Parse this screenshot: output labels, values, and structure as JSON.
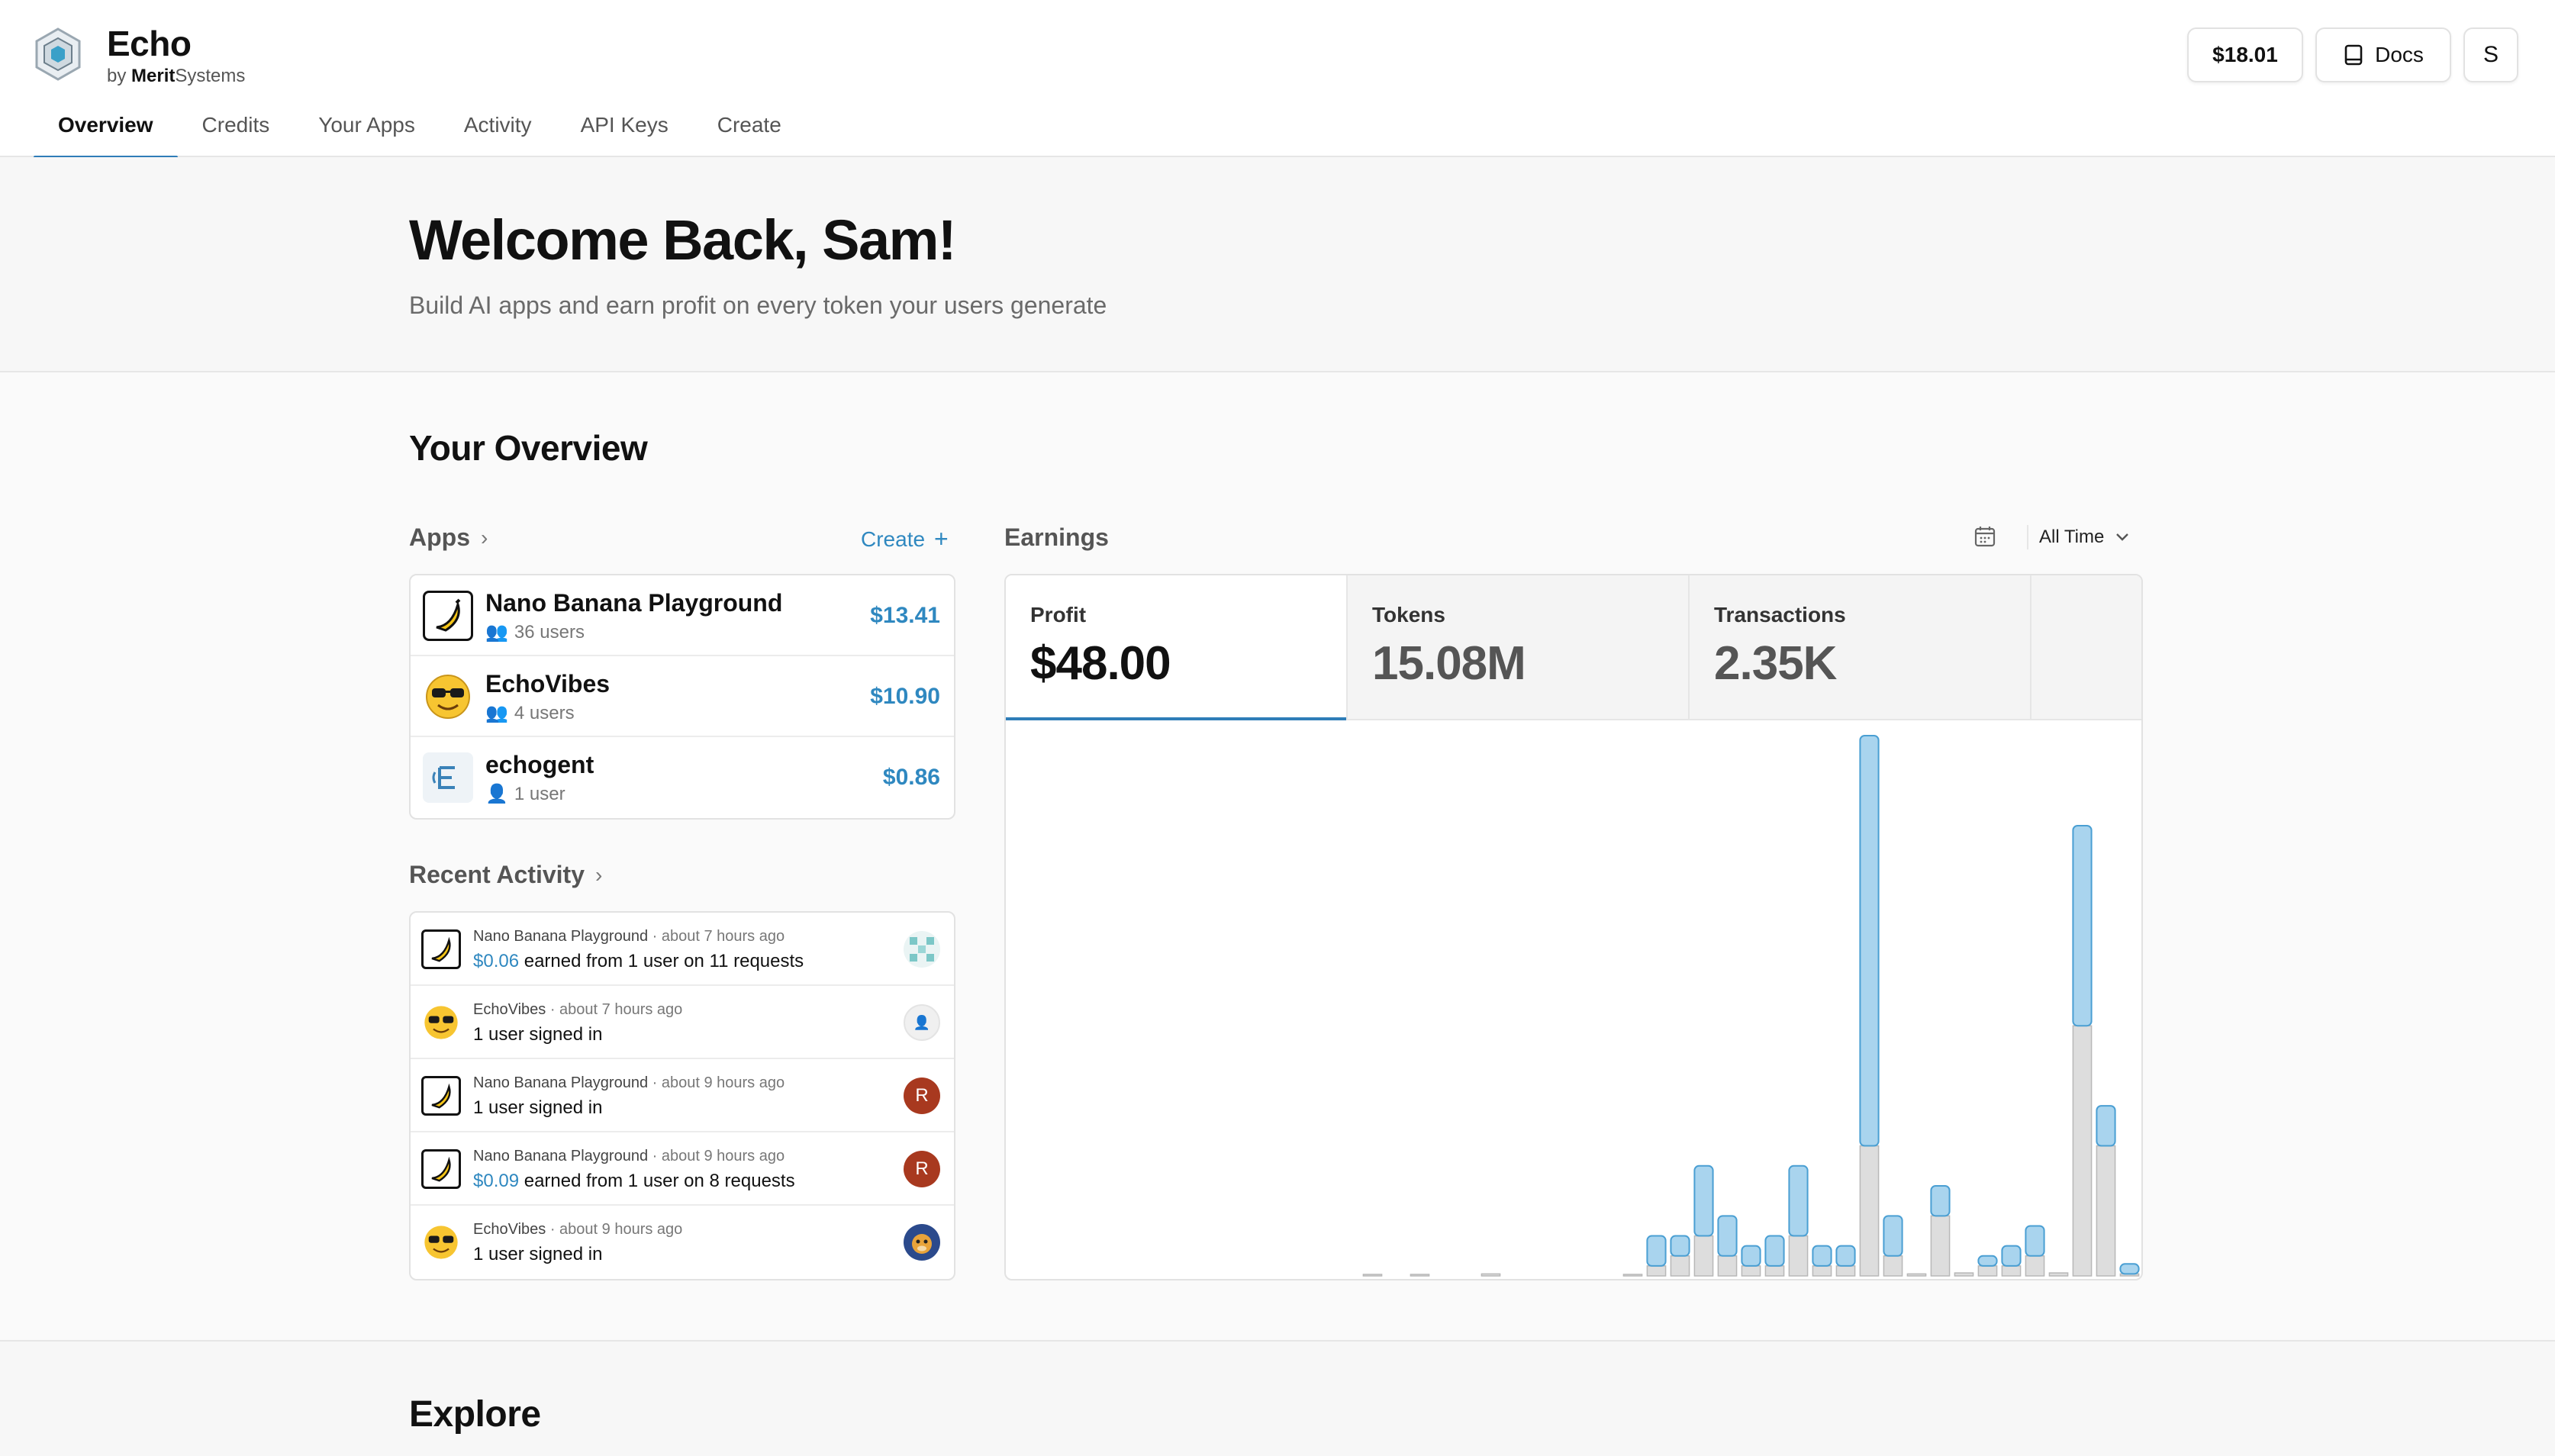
{
  "header": {
    "brand": "Echo",
    "by_prefix": "by",
    "by_company_bold": "Merit",
    "by_company_rest": "Systems",
    "balance": "$18.01",
    "docs_label": "Docs",
    "user_initial": "S",
    "tabs": [
      "Overview",
      "Credits",
      "Your Apps",
      "Activity",
      "API Keys",
      "Create"
    ],
    "active_tab": "Overview"
  },
  "welcome": {
    "title": "Welcome Back, Sam!",
    "subtitle": "Build AI apps and earn profit on every token your users generate"
  },
  "overview": {
    "title": "Your Overview",
    "apps_label": "Apps",
    "create_label": "Create",
    "apps": [
      {
        "name": "Nano Banana Playground",
        "users": "36 users",
        "amount": "$13.41",
        "icon": "banana-icon"
      },
      {
        "name": "EchoVibes",
        "users": "4 users",
        "amount": "$10.90",
        "icon": "sunglasses-smiley-icon"
      },
      {
        "name": "echogent",
        "users": "1 user",
        "amount": "$0.86",
        "icon": "echogent-icon"
      }
    ],
    "recent_activity_label": "Recent Activity",
    "activity": [
      {
        "app": "Nano Banana Playground",
        "time": "about 7 hours ago",
        "amount": "$0.06",
        "text": " earned from 1 user on 11 requests",
        "icon": "banana-icon",
        "avatar": "pattern-avatar"
      },
      {
        "app": "EchoVibes",
        "time": "about 7 hours ago",
        "amount": "",
        "text": "1 user signed in",
        "icon": "sunglasses-smiley-icon",
        "avatar": "user-placeholder-avatar"
      },
      {
        "app": "Nano Banana Playground",
        "time": "about 9 hours ago",
        "amount": "",
        "text": "1 user signed in",
        "icon": "banana-icon",
        "avatar": "R"
      },
      {
        "app": "Nano Banana Playground",
        "time": "about 9 hours ago",
        "amount": "$0.09",
        "text": " earned from 1 user on 8 requests",
        "icon": "banana-icon",
        "avatar": "R"
      },
      {
        "app": "EchoVibes",
        "time": "about 9 hours ago",
        "amount": "",
        "text": "1 user signed in",
        "icon": "sunglasses-smiley-icon",
        "avatar": "monkey-avatar"
      }
    ]
  },
  "earnings": {
    "label": "Earnings",
    "range": "All Time",
    "stats": [
      {
        "label": "Profit",
        "value": "$48.00"
      },
      {
        "label": "Tokens",
        "value": "15.08M"
      },
      {
        "label": "Transactions",
        "value": "2.35K"
      }
    ]
  },
  "chart_data": {
    "type": "bar",
    "stacked": true,
    "grid": false,
    "series": [
      {
        "values": [
          0,
          0,
          0,
          0,
          0,
          0,
          0,
          0,
          0,
          0,
          0,
          0,
          0,
          0,
          0,
          0,
          0,
          0,
          0,
          0,
          0,
          0,
          0,
          0,
          0,
          0,
          0,
          0.3,
          0.2,
          0.7,
          0.4,
          0.2,
          0.3,
          0.7,
          0.2,
          0.2,
          4.1,
          0.4,
          0,
          0.3,
          0,
          0.1,
          0.2,
          0.3,
          0,
          2.0,
          0.4,
          0.1
        ]
      },
      {
        "values": [
          0,
          0,
          0,
          0,
          0,
          0,
          0,
          0,
          0,
          0,
          0,
          0,
          0,
          0,
          0,
          0.01,
          0,
          0.01,
          0,
          0,
          0.02,
          0,
          0,
          0,
          0,
          0,
          0.01,
          0.1,
          0.2,
          0.4,
          0.2,
          0.1,
          0.1,
          0.4,
          0.1,
          0.1,
          1.3,
          0.2,
          0.02,
          0.6,
          0.03,
          0.1,
          0.1,
          0.2,
          0.03,
          2.5,
          1.3,
          0.02
        ]
      }
    ],
    "colors": {
      "top": "#a9d4ee",
      "top_stroke": "#4a9fd3",
      "bottom": "#dddddd",
      "bottom_stroke": "#b8b8b8"
    }
  }
}
